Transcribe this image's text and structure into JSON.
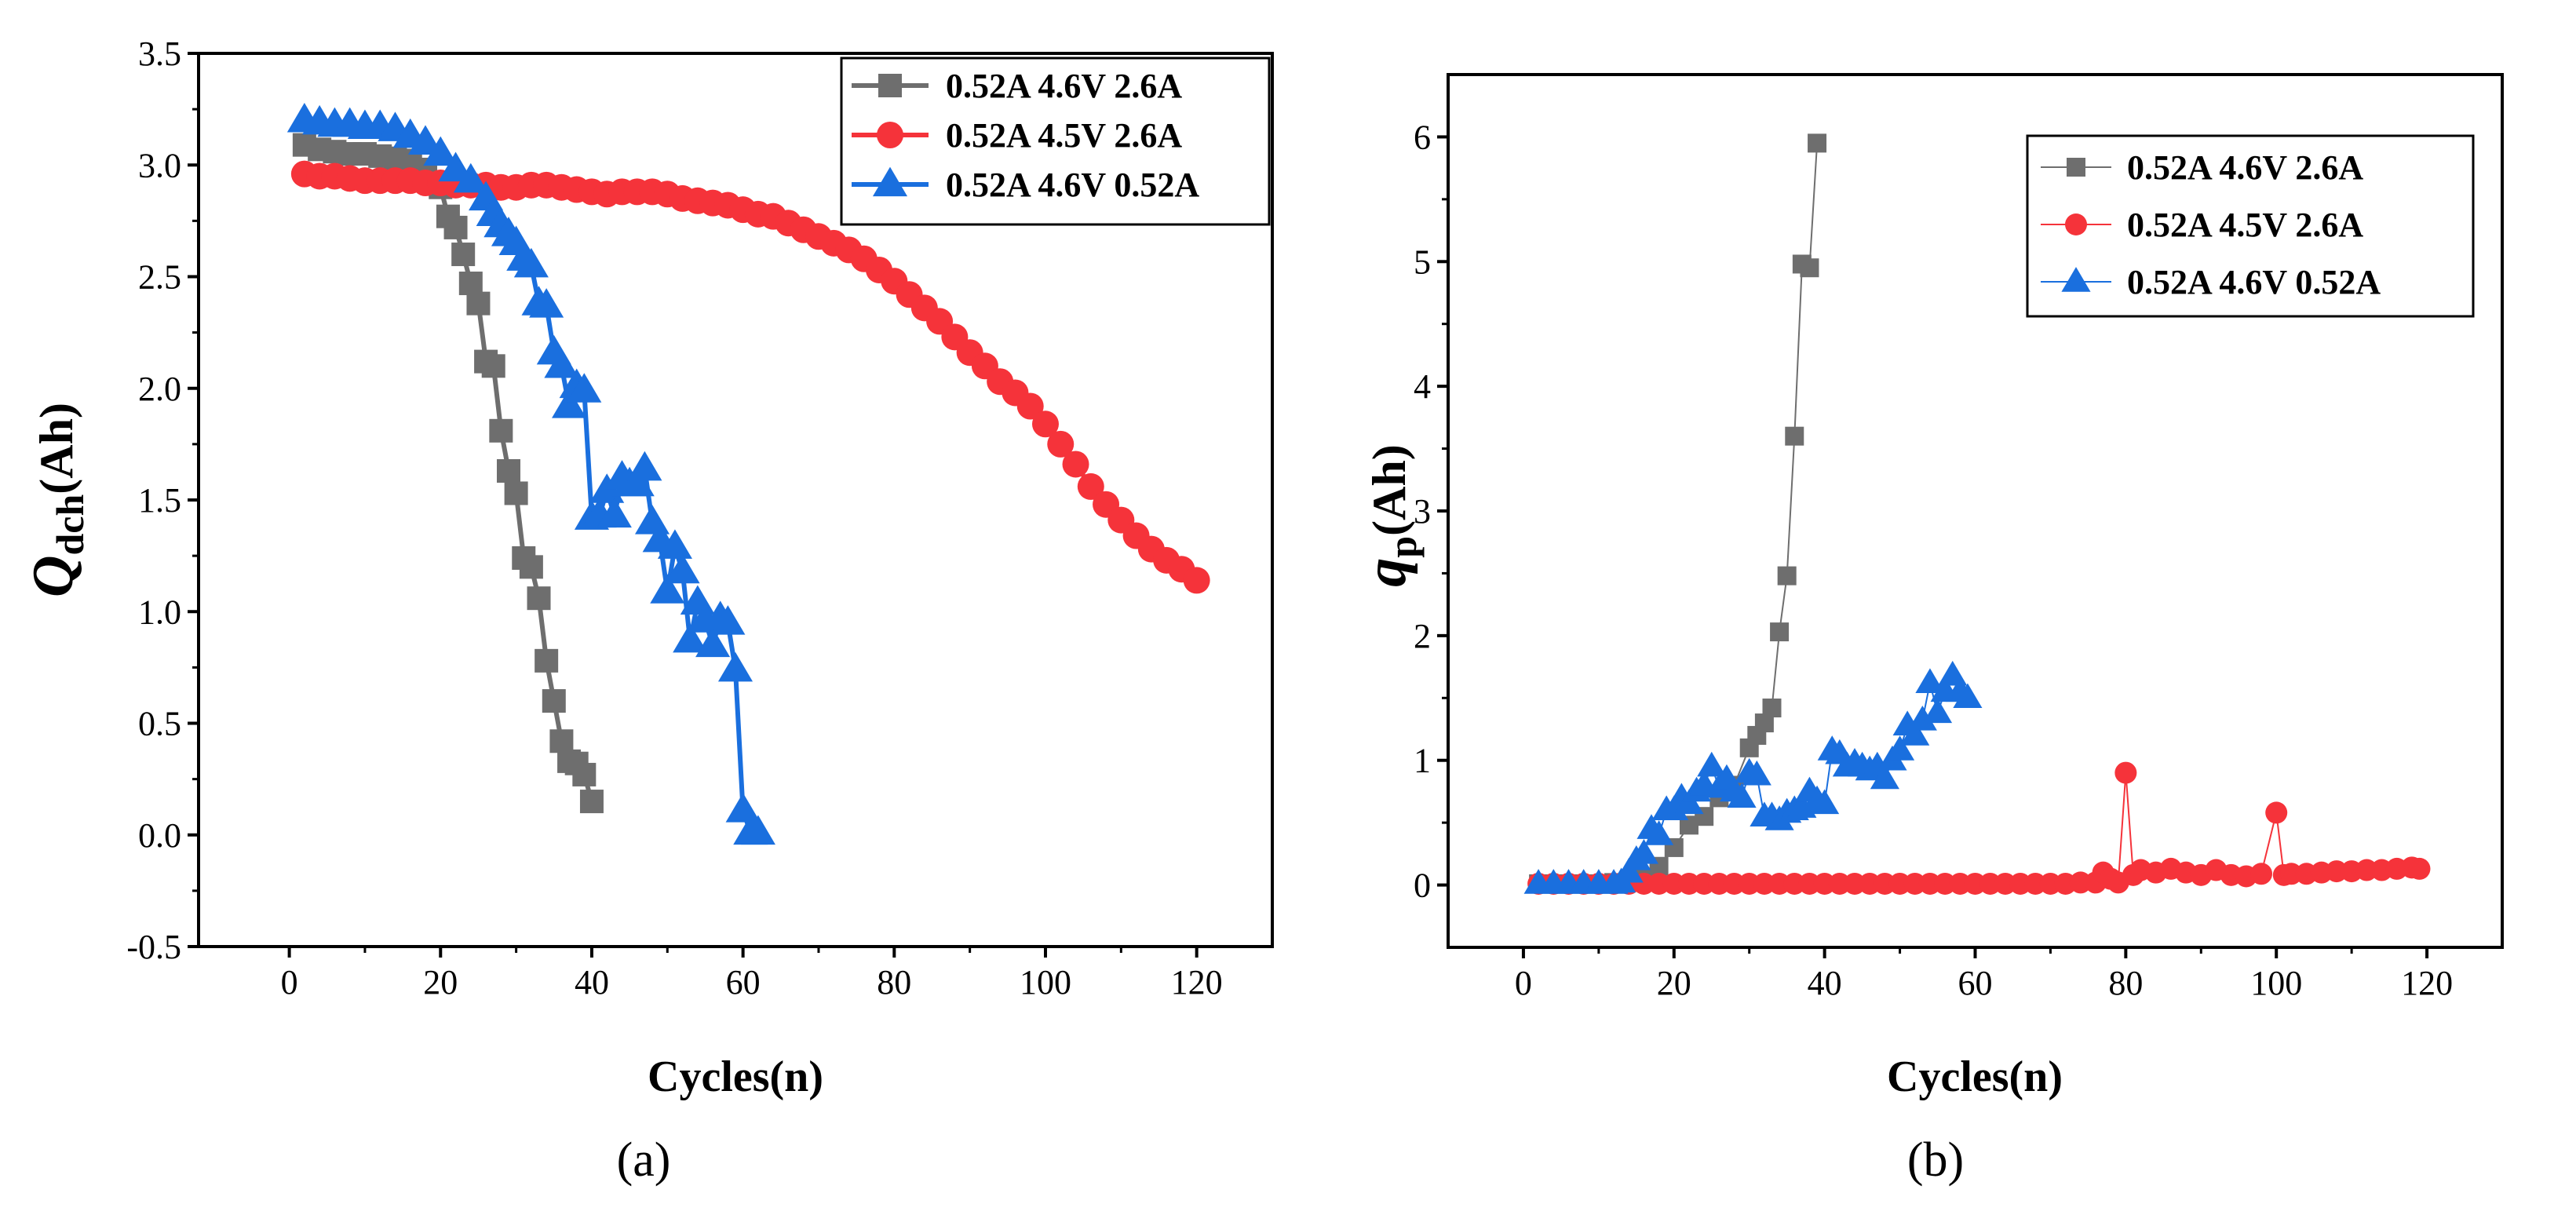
{
  "colors": {
    "gray": "#6e6e6e",
    "red": "#f5333a",
    "blue": "#1a6fde"
  },
  "chart_data": [
    {
      "panel": "(a)",
      "type": "line",
      "xlabel": "Cycles(n)",
      "ylabel_main": "Q",
      "ylabel_sub": "dch",
      "ylabel_unit": "(Ah)",
      "xlim": [
        -12,
        130
      ],
      "ylim": [
        -0.5,
        3.5
      ],
      "xticks": [
        0,
        20,
        40,
        60,
        80,
        100,
        120
      ],
      "yticks": [
        -0.5,
        0.0,
        0.5,
        1.0,
        1.5,
        2.0,
        2.5,
        3.0,
        3.5
      ],
      "yticklabels": [
        "-0.5",
        "0.0",
        "0.5",
        "1.0",
        "1.5",
        "2.0",
        "2.5",
        "3.0",
        "3.5"
      ],
      "legend_position": "top-right",
      "series": [
        {
          "name": "0.52A 4.6V 2.6A",
          "color": "gray",
          "marker": "square",
          "x": [
            2,
            4,
            6,
            8,
            10,
            12,
            14,
            16,
            18,
            20,
            21,
            22,
            23,
            24,
            25,
            26,
            27,
            28,
            29,
            30,
            31,
            32,
            33,
            34,
            35,
            36,
            37,
            38,
            39,
            40
          ],
          "y": [
            3.09,
            3.07,
            3.06,
            3.05,
            3.05,
            3.04,
            3.03,
            3.02,
            2.98,
            2.9,
            2.77,
            2.72,
            2.6,
            2.47,
            2.38,
            2.12,
            2.1,
            1.81,
            1.63,
            1.53,
            1.24,
            1.2,
            1.06,
            0.78,
            0.6,
            0.42,
            0.33,
            0.32,
            0.27,
            0.15
          ]
        },
        {
          "name": "0.52A 4.5V 2.6A",
          "color": "red",
          "marker": "circle",
          "x": [
            2,
            4,
            6,
            8,
            10,
            12,
            14,
            16,
            18,
            20,
            22,
            24,
            26,
            28,
            30,
            32,
            34,
            36,
            38,
            40,
            42,
            44,
            46,
            48,
            50,
            52,
            54,
            56,
            58,
            60,
            62,
            64,
            66,
            68,
            70,
            72,
            74,
            76,
            78,
            80,
            82,
            84,
            86,
            88,
            90,
            92,
            94,
            96,
            98,
            100,
            102,
            104,
            106,
            108,
            110,
            112,
            114,
            116,
            118,
            120
          ],
          "y": [
            2.96,
            2.95,
            2.95,
            2.94,
            2.93,
            2.93,
            2.93,
            2.93,
            2.92,
            2.92,
            2.91,
            2.91,
            2.91,
            2.9,
            2.9,
            2.91,
            2.91,
            2.9,
            2.89,
            2.88,
            2.87,
            2.88,
            2.88,
            2.88,
            2.87,
            2.85,
            2.84,
            2.83,
            2.82,
            2.8,
            2.78,
            2.77,
            2.74,
            2.71,
            2.68,
            2.65,
            2.62,
            2.58,
            2.53,
            2.48,
            2.42,
            2.36,
            2.3,
            2.23,
            2.16,
            2.1,
            2.03,
            1.98,
            1.92,
            1.84,
            1.75,
            1.66,
            1.56,
            1.48,
            1.41,
            1.34,
            1.28,
            1.23,
            1.19,
            1.14
          ]
        },
        {
          "name": "0.52A 4.6V 0.52A",
          "color": "blue",
          "marker": "triangle",
          "x": [
            2,
            4,
            6,
            8,
            10,
            12,
            14,
            16,
            18,
            20,
            22,
            24,
            26,
            27,
            28,
            29,
            30,
            31,
            32,
            33,
            34,
            35,
            36,
            37,
            38,
            39,
            40,
            41,
            42,
            43,
            44,
            45,
            46,
            47,
            48,
            49,
            50,
            51,
            52,
            53,
            54,
            55,
            56,
            57,
            58,
            59,
            60,
            61,
            62
          ],
          "y": [
            3.2,
            3.19,
            3.18,
            3.18,
            3.17,
            3.17,
            3.16,
            3.13,
            3.1,
            3.05,
            2.98,
            2.93,
            2.85,
            2.78,
            2.73,
            2.69,
            2.65,
            2.58,
            2.55,
            2.38,
            2.37,
            2.16,
            2.1,
            1.92,
            2.01,
            1.99,
            1.42,
            1.43,
            1.54,
            1.43,
            1.6,
            1.57,
            1.57,
            1.64,
            1.4,
            1.32,
            1.09,
            1.29,
            1.18,
            0.87,
            1.04,
            0.96,
            0.85,
            0.97,
            0.95,
            0.74,
            0.11,
            0.01,
            0.01
          ]
        }
      ]
    },
    {
      "panel": "(b)",
      "type": "line",
      "xlabel": "Cycles(n)",
      "ylabel_main": "q",
      "ylabel_sub": "p",
      "ylabel_unit": "(Ah)",
      "xlim": [
        -10,
        130
      ],
      "ylim": [
        -0.5,
        6.5
      ],
      "xticks": [
        0,
        20,
        40,
        60,
        80,
        100,
        120
      ],
      "yticks": [
        0,
        1,
        2,
        3,
        4,
        5,
        6
      ],
      "yticklabels": [
        "0",
        "1",
        "2",
        "3",
        "4",
        "5",
        "6"
      ],
      "legend_position": "top-right",
      "series": [
        {
          "name": "0.52A 4.6V 2.6A",
          "color": "gray",
          "marker": "square",
          "x": [
            2,
            4,
            6,
            8,
            10,
            12,
            14,
            16,
            18,
            20,
            22,
            24,
            26,
            28,
            30,
            31,
            32,
            33,
            34,
            35,
            36,
            37,
            38,
            39
          ],
          "y": [
            0.01,
            0.01,
            0.01,
            0.01,
            0.01,
            0.02,
            0.02,
            0.05,
            0.15,
            0.3,
            0.48,
            0.55,
            0.7,
            0.8,
            1.1,
            1.2,
            1.3,
            1.42,
            2.03,
            2.48,
            3.6,
            4.98,
            4.95,
            5.95
          ]
        },
        {
          "name": "0.52A 4.5V 2.6A",
          "color": "red",
          "marker": "circle",
          "x": [
            2,
            4,
            6,
            8,
            10,
            12,
            14,
            16,
            18,
            20,
            22,
            24,
            26,
            28,
            30,
            32,
            34,
            36,
            38,
            40,
            42,
            44,
            46,
            48,
            50,
            52,
            54,
            56,
            58,
            60,
            62,
            64,
            66,
            68,
            70,
            72,
            74,
            76,
            77,
            78,
            79,
            80,
            81,
            82,
            84,
            86,
            88,
            90,
            92,
            94,
            96,
            98,
            100,
            101,
            102,
            104,
            106,
            108,
            110,
            112,
            114,
            116,
            118,
            119
          ],
          "y": [
            0.01,
            0.01,
            0.01,
            0.01,
            0.01,
            0.01,
            0.01,
            0.01,
            0.01,
            0.01,
            0.01,
            0.01,
            0.01,
            0.01,
            0.01,
            0.01,
            0.01,
            0.01,
            0.01,
            0.01,
            0.01,
            0.01,
            0.01,
            0.01,
            0.01,
            0.01,
            0.01,
            0.01,
            0.01,
            0.01,
            0.01,
            0.01,
            0.01,
            0.01,
            0.01,
            0.01,
            0.02,
            0.02,
            0.1,
            0.05,
            0.02,
            0.9,
            0.08,
            0.12,
            0.1,
            0.13,
            0.1,
            0.08,
            0.12,
            0.08,
            0.07,
            0.09,
            0.58,
            0.08,
            0.09,
            0.09,
            0.1,
            0.11,
            0.11,
            0.12,
            0.12,
            0.13,
            0.14,
            0.13
          ]
        },
        {
          "name": "0.52A 4.6V 0.52A",
          "color": "blue",
          "marker": "triangle",
          "x": [
            2,
            4,
            6,
            8,
            10,
            12,
            13,
            14,
            15,
            16,
            17,
            18,
            19,
            20,
            21,
            22,
            23,
            24,
            25,
            26,
            27,
            28,
            29,
            30,
            31,
            32,
            33,
            34,
            35,
            36,
            37,
            38,
            39,
            40,
            41,
            42,
            43,
            44,
            45,
            46,
            47,
            48,
            49,
            50,
            51,
            52,
            53,
            54,
            55,
            56,
            57,
            58,
            59
          ],
          "y": [
            0.01,
            0.01,
            0.01,
            0.01,
            0.01,
            0.01,
            0.02,
            0.1,
            0.2,
            0.25,
            0.45,
            0.4,
            0.6,
            0.6,
            0.7,
            0.65,
            0.75,
            0.8,
            0.95,
            0.78,
            0.85,
            0.75,
            0.7,
            0.9,
            0.88,
            0.55,
            0.55,
            0.52,
            0.58,
            0.6,
            0.62,
            0.75,
            0.68,
            0.65,
            1.08,
            1.05,
            0.95,
            0.98,
            0.95,
            0.92,
            0.95,
            0.85,
            1.0,
            1.08,
            1.28,
            1.2,
            1.32,
            1.62,
            1.38,
            1.55,
            1.68,
            1.55,
            1.5
          ]
        }
      ]
    }
  ]
}
